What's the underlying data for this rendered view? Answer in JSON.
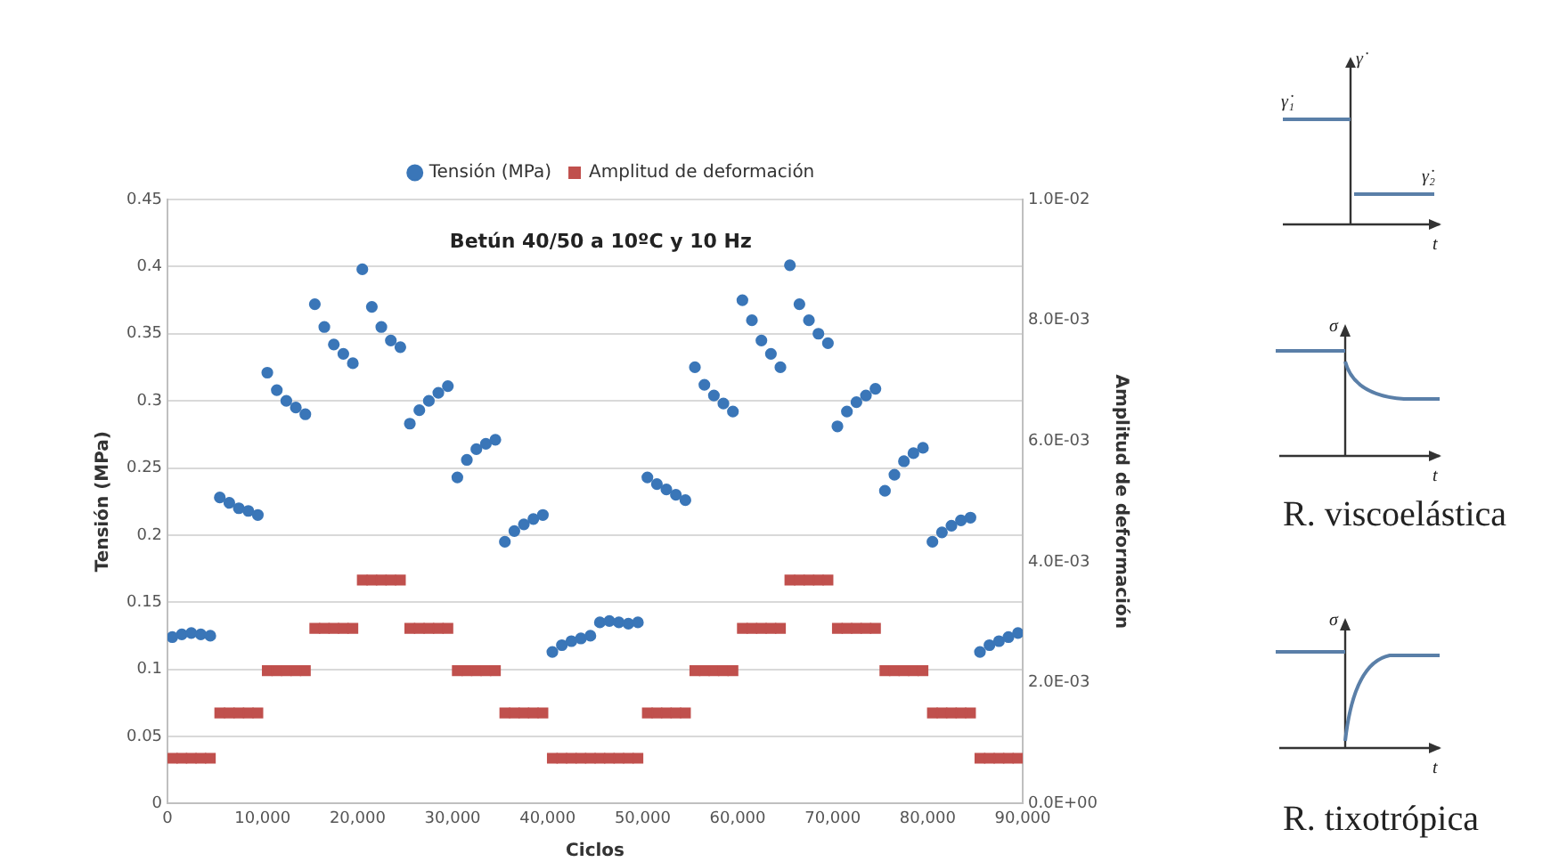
{
  "chart_data": {
    "type": "scatter",
    "title": "Betún 40/50 a 10ºC y 10 Hz",
    "xlabel": "Ciclos",
    "ylabel": "Tensión (MPa)",
    "y2label": "Amplitud de deformación",
    "xlim": [
      0,
      90000
    ],
    "xticks": [
      0,
      {
        "value": 10000,
        "label": "10,000"
      },
      {
        "value": 20000,
        "label": "20,000"
      },
      {
        "value": 30000,
        "label": "30,000"
      },
      {
        "value": 40000,
        "label": "40,000"
      },
      {
        "value": 50000,
        "label": "50,000"
      },
      {
        "value": 60000,
        "label": "60,000"
      },
      {
        "value": 70000,
        "label": "70,000"
      },
      {
        "value": 80000,
        "label": "80,000"
      },
      {
        "value": 90000,
        "label": "90,000"
      }
    ],
    "ylim": [
      0,
      0.45
    ],
    "yticks": [
      0,
      0.05,
      0.1,
      0.15,
      0.2,
      0.25,
      0.3,
      0.35,
      0.4,
      0.45
    ],
    "y2lim": [
      0,
      0.01
    ],
    "y2ticks": [
      {
        "value": 0,
        "label": "0.0E+00"
      },
      {
        "value": 0.002,
        "label": "2.0E-03"
      },
      {
        "value": 0.004,
        "label": "4.0E-03"
      },
      {
        "value": 0.006,
        "label": "6.0E-03"
      },
      {
        "value": 0.008,
        "label": "8.0E-03"
      },
      {
        "value": 0.01,
        "label": "1.0E-02"
      }
    ],
    "grid": "y",
    "legend": "top",
    "annotations": [
      "γ̇",
      "γ̇₁",
      "γ̇₂",
      "t",
      "σ",
      "t",
      "R. viscoelástica",
      "σ",
      "t",
      "R. tixotrópica"
    ],
    "series": [
      {
        "name": "Tensión (MPa)",
        "color": "#3a76b8",
        "marker": "circle",
        "x": [
          500,
          1500,
          2500,
          3500,
          4500,
          5500,
          6500,
          7500,
          8500,
          9500,
          10500,
          11500,
          12500,
          13500,
          14500,
          15500,
          16500,
          17500,
          18500,
          19500,
          20500,
          21500,
          22500,
          23500,
          24500,
          25500,
          26500,
          27500,
          28500,
          29500,
          30500,
          31500,
          32500,
          33500,
          34500,
          35500,
          36500,
          37500,
          38500,
          39500,
          40500,
          41500,
          42500,
          43500,
          44500,
          45500,
          46500,
          47500,
          48500,
          49500,
          50500,
          51500,
          52500,
          53500,
          54500,
          55500,
          56500,
          57500,
          58500,
          59500,
          60500,
          61500,
          62500,
          63500,
          64500,
          65500,
          66500,
          67500,
          68500,
          69500,
          70500,
          71500,
          72500,
          73500,
          74500,
          75500,
          76500,
          77500,
          78500,
          79500,
          80500,
          81500,
          82500,
          83500,
          84500,
          85500,
          86500,
          87500,
          88500,
          89500
        ],
        "values": [
          0.124,
          0.126,
          0.127,
          0.126,
          0.125,
          0.228,
          0.224,
          0.22,
          0.218,
          0.215,
          0.321,
          0.308,
          0.3,
          0.295,
          0.29,
          0.372,
          0.355,
          0.342,
          0.335,
          0.328,
          0.398,
          0.37,
          0.355,
          0.345,
          0.34,
          0.283,
          0.293,
          0.3,
          0.306,
          0.311,
          0.243,
          0.256,
          0.264,
          0.268,
          0.271,
          0.195,
          0.203,
          0.208,
          0.212,
          0.215,
          0.113,
          0.118,
          0.121,
          0.123,
          0.125,
          0.135,
          0.136,
          0.135,
          0.134,
          0.135,
          0.243,
          0.238,
          0.234,
          0.23,
          0.226,
          0.325,
          0.312,
          0.304,
          0.298,
          0.292,
          0.375,
          0.36,
          0.345,
          0.335,
          0.325,
          0.401,
          0.372,
          0.36,
          0.35,
          0.343,
          0.281,
          0.292,
          0.299,
          0.304,
          0.309,
          0.233,
          0.245,
          0.255,
          0.261,
          0.265,
          0.195,
          0.202,
          0.207,
          0.211,
          0.213,
          0.113,
          0.118,
          0.121,
          0.124,
          0.127
        ]
      },
      {
        "name": "Amplitud de deformación",
        "color": "#c0504d",
        "marker": "square",
        "axis": "y2",
        "x": [
          500,
          1500,
          2500,
          3500,
          4500,
          5500,
          6500,
          7500,
          8500,
          9500,
          10500,
          11500,
          12500,
          13500,
          14500,
          15500,
          16500,
          17500,
          18500,
          19500,
          20500,
          21500,
          22500,
          23500,
          24500,
          25500,
          26500,
          27500,
          28500,
          29500,
          30500,
          31500,
          32500,
          33500,
          34500,
          35500,
          36500,
          37500,
          38500,
          39500,
          40500,
          41500,
          42500,
          43500,
          44500,
          45500,
          46500,
          47500,
          48500,
          49500,
          50500,
          51500,
          52500,
          53500,
          54500,
          55500,
          56500,
          57500,
          58500,
          59500,
          60500,
          61500,
          62500,
          63500,
          64500,
          65500,
          66500,
          67500,
          68500,
          69500,
          70500,
          71500,
          72500,
          73500,
          74500,
          75500,
          76500,
          77500,
          78500,
          79500,
          80500,
          81500,
          82500,
          83500,
          84500,
          85500,
          86500,
          87500,
          88500,
          89500
        ],
        "values": [
          0.00075,
          0.00075,
          0.00075,
          0.00075,
          0.00075,
          0.0015,
          0.0015,
          0.0015,
          0.0015,
          0.0015,
          0.0022,
          0.0022,
          0.0022,
          0.0022,
          0.0022,
          0.0029,
          0.0029,
          0.0029,
          0.0029,
          0.0029,
          0.0037,
          0.0037,
          0.0037,
          0.0037,
          0.0037,
          0.0029,
          0.0029,
          0.0029,
          0.0029,
          0.0029,
          0.0022,
          0.0022,
          0.0022,
          0.0022,
          0.0022,
          0.0015,
          0.0015,
          0.0015,
          0.0015,
          0.0015,
          0.00075,
          0.00075,
          0.00075,
          0.00075,
          0.00075,
          0.00075,
          0.00075,
          0.00075,
          0.00075,
          0.00075,
          0.0015,
          0.0015,
          0.0015,
          0.0015,
          0.0015,
          0.0022,
          0.0022,
          0.0022,
          0.0022,
          0.0022,
          0.0029,
          0.0029,
          0.0029,
          0.0029,
          0.0029,
          0.0037,
          0.0037,
          0.0037,
          0.0037,
          0.0037,
          0.0029,
          0.0029,
          0.0029,
          0.0029,
          0.0029,
          0.0022,
          0.0022,
          0.0022,
          0.0022,
          0.0022,
          0.0015,
          0.0015,
          0.0015,
          0.0015,
          0.0015,
          0.00075,
          0.00075,
          0.00075,
          0.00075,
          0.00075
        ]
      }
    ]
  }
}
